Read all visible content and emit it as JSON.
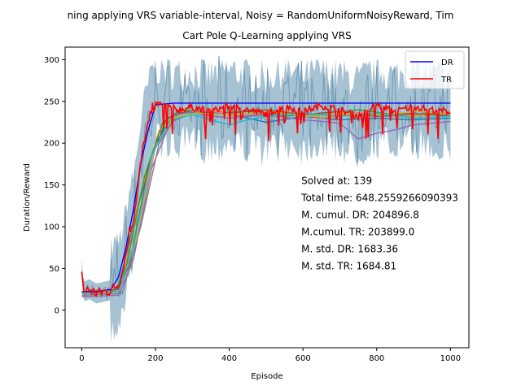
{
  "chart_data": {
    "type": "line",
    "title": "ning applying VRS variable-interval, Noisy = RandomUniformNoisyReward, Tim",
    "subtitle": "Cart Pole Q-Learning applying VRS",
    "xlabel": "Episode",
    "ylabel": "Duration/Reward",
    "xlim": [
      -45,
      1050
    ],
    "ylim": [
      -45,
      315
    ],
    "x_ticks": [
      0,
      200,
      400,
      600,
      800,
      1000
    ],
    "y_ticks": [
      0,
      50,
      100,
      150,
      200,
      250,
      300
    ],
    "grid": false,
    "legend_position": "top-right",
    "legend": [
      {
        "label": "DR",
        "color": "#0000ff"
      },
      {
        "label": "TR",
        "color": "#ff0000"
      }
    ],
    "annotations": [
      "Solved at: 139",
      "Total time: 648.2559266090393",
      "M. cumul. DR: 204896.8",
      "M.cumul. TR: 203899.0",
      "M. std. DR: 1683.36",
      "M. std. TR: 1684.81"
    ],
    "annotation_anchor": {
      "x": 600,
      "y": 155
    },
    "series": [
      {
        "color": "#ff0000",
        "role": "TR",
        "points": [
          [
            0,
            50
          ],
          [
            5,
            22
          ],
          [
            20,
            25
          ],
          [
            40,
            20
          ],
          [
            60,
            22
          ],
          [
            80,
            24
          ],
          [
            100,
            32
          ],
          [
            110,
            45
          ],
          [
            120,
            70
          ],
          [
            130,
            95
          ],
          [
            140,
            110
          ],
          [
            150,
            140
          ],
          [
            160,
            175
          ],
          [
            170,
            205
          ],
          [
            180,
            220
          ],
          [
            190,
            240
          ],
          [
            200,
            248
          ],
          [
            230,
            245
          ],
          [
            260,
            240
          ],
          [
            300,
            243
          ],
          [
            350,
            238
          ],
          [
            400,
            245
          ],
          [
            450,
            240
          ],
          [
            500,
            235
          ],
          [
            550,
            244
          ],
          [
            600,
            238
          ],
          [
            650,
            245
          ],
          [
            700,
            240
          ],
          [
            750,
            232
          ],
          [
            800,
            246
          ],
          [
            850,
            238
          ],
          [
            900,
            244
          ],
          [
            950,
            240
          ],
          [
            1000,
            238
          ]
        ]
      },
      {
        "color": "#0000ff",
        "role": "DR",
        "points": [
          [
            0,
            22
          ],
          [
            40,
            22
          ],
          [
            80,
            25
          ],
          [
            100,
            40
          ],
          [
            120,
            75
          ],
          [
            140,
            120
          ],
          [
            160,
            175
          ],
          [
            180,
            215
          ],
          [
            200,
            246
          ],
          [
            250,
            248
          ],
          [
            300,
            248
          ],
          [
            400,
            248
          ],
          [
            500,
            248
          ],
          [
            600,
            248
          ],
          [
            700,
            248
          ],
          [
            800,
            248
          ],
          [
            900,
            248
          ],
          [
            1000,
            248
          ]
        ]
      },
      {
        "color": "#1f77b4",
        "points": [
          [
            0,
            20
          ],
          [
            80,
            22
          ],
          [
            100,
            30
          ],
          [
            150,
            120
          ],
          [
            200,
            200
          ],
          [
            250,
            235
          ],
          [
            300,
            238
          ],
          [
            400,
            235
          ],
          [
            500,
            225
          ],
          [
            600,
            232
          ],
          [
            700,
            228
          ],
          [
            800,
            230
          ],
          [
            900,
            228
          ],
          [
            1000,
            230
          ]
        ]
      },
      {
        "color": "#ff7f0e",
        "points": [
          [
            0,
            18
          ],
          [
            80,
            20
          ],
          [
            110,
            35
          ],
          [
            160,
            140
          ],
          [
            210,
            215
          ],
          [
            260,
            238
          ],
          [
            350,
            240
          ],
          [
            450,
            232
          ],
          [
            550,
            238
          ],
          [
            650,
            230
          ],
          [
            750,
            236
          ],
          [
            850,
            232
          ],
          [
            1000,
            234
          ]
        ]
      },
      {
        "color": "#2ca02c",
        "points": [
          [
            0,
            20
          ],
          [
            90,
            22
          ],
          [
            120,
            50
          ],
          [
            170,
            160
          ],
          [
            220,
            225
          ],
          [
            270,
            240
          ],
          [
            350,
            236
          ],
          [
            450,
            238
          ],
          [
            550,
            232
          ],
          [
            650,
            236
          ],
          [
            750,
            240
          ],
          [
            850,
            234
          ],
          [
            1000,
            236
          ]
        ]
      },
      {
        "color": "#9467bd",
        "points": [
          [
            0,
            16
          ],
          [
            100,
            18
          ],
          [
            140,
            60
          ],
          [
            190,
            170
          ],
          [
            240,
            225
          ],
          [
            300,
            236
          ],
          [
            400,
            230
          ],
          [
            500,
            234
          ],
          [
            600,
            228
          ],
          [
            700,
            224
          ],
          [
            750,
            205
          ],
          [
            800,
            212
          ],
          [
            850,
            216
          ],
          [
            900,
            222
          ],
          [
            1000,
            226
          ]
        ]
      },
      {
        "color": "#8c564b",
        "points": [
          [
            0,
            22
          ],
          [
            100,
            25
          ],
          [
            130,
            55
          ],
          [
            180,
            170
          ],
          [
            230,
            230
          ],
          [
            290,
            238
          ],
          [
            400,
            236
          ],
          [
            500,
            240
          ],
          [
            600,
            234
          ],
          [
            700,
            238
          ],
          [
            800,
            232
          ],
          [
            900,
            236
          ],
          [
            1000,
            232
          ]
        ]
      },
      {
        "color": "#e377c2",
        "points": [
          [
            0,
            20
          ],
          [
            100,
            22
          ],
          [
            150,
            90
          ],
          [
            200,
            195
          ],
          [
            250,
            232
          ],
          [
            320,
            240
          ],
          [
            420,
            234
          ],
          [
            520,
            236
          ],
          [
            620,
            232
          ],
          [
            720,
            238
          ],
          [
            820,
            234
          ],
          [
            920,
            238
          ],
          [
            1000,
            236
          ]
        ]
      },
      {
        "color": "#7f7f7f",
        "points": [
          [
            0,
            18
          ],
          [
            110,
            20
          ],
          [
            160,
            100
          ],
          [
            210,
            200
          ],
          [
            260,
            235
          ],
          [
            330,
            238
          ],
          [
            430,
            232
          ],
          [
            530,
            236
          ],
          [
            630,
            234
          ],
          [
            730,
            236
          ],
          [
            830,
            232
          ],
          [
            930,
            236
          ],
          [
            1000,
            234
          ]
        ]
      },
      {
        "color": "#bcbd22",
        "points": [
          [
            0,
            20
          ],
          [
            100,
            22
          ],
          [
            145,
            80
          ],
          [
            195,
            190
          ],
          [
            245,
            230
          ],
          [
            310,
            236
          ],
          [
            410,
            234
          ],
          [
            510,
            238
          ],
          [
            610,
            232
          ],
          [
            710,
            236
          ],
          [
            810,
            234
          ],
          [
            910,
            238
          ],
          [
            1000,
            235
          ]
        ]
      },
      {
        "color": "#17becf",
        "points": [
          [
            0,
            20
          ],
          [
            100,
            22
          ],
          [
            140,
            75
          ],
          [
            190,
            185
          ],
          [
            240,
            228
          ],
          [
            300,
            234
          ],
          [
            400,
            222
          ],
          [
            450,
            228
          ],
          [
            500,
            232
          ],
          [
            600,
            236
          ],
          [
            700,
            232
          ],
          [
            800,
            236
          ],
          [
            900,
            230
          ],
          [
            1000,
            232
          ]
        ]
      }
    ]
  }
}
